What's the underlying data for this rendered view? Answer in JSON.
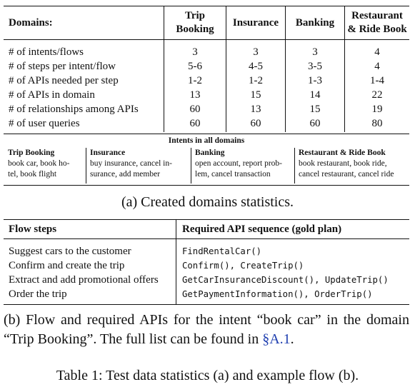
{
  "stats_table": {
    "header": {
      "domains_label": "Domains:",
      "columns": [
        {
          "line1": "Trip",
          "line2": "Booking"
        },
        {
          "line1": "Insurance",
          "line2": ""
        },
        {
          "line1": "Banking",
          "line2": ""
        },
        {
          "line1": "Restaurant",
          "line2": "& Ride Book"
        }
      ]
    },
    "rows": [
      {
        "label": "# of intents/flows",
        "values": [
          "3",
          "3",
          "3",
          "4"
        ]
      },
      {
        "label": "# of steps per intent/flow",
        "values": [
          "5-6",
          "4-5",
          "3-5",
          "4"
        ]
      },
      {
        "label": "# of APIs needed per step",
        "values": [
          "1-2",
          "1-2",
          "1-3",
          "1-4"
        ]
      },
      {
        "label": "# of APIs in domain",
        "values": [
          "13",
          "15",
          "14",
          "22"
        ]
      },
      {
        "label": "# of relationships among APIs",
        "values": [
          "60",
          "13",
          "15",
          "19"
        ]
      },
      {
        "label": "# of user queries",
        "values": [
          "60",
          "60",
          "60",
          "80"
        ]
      }
    ]
  },
  "intents": {
    "title": "Intents in all domains",
    "columns": [
      {
        "head": "Trip Booking",
        "line1": "book car, book ho-",
        "line2": "tel, book flight"
      },
      {
        "head": "Insurance",
        "line1": "buy insurance, cancel in-",
        "line2": "surance, add member"
      },
      {
        "head": "Banking",
        "line1": "open account, report prob-",
        "line2": "lem, cancel transaction"
      },
      {
        "head": "Restaurant & Ride Book",
        "line1": "book restaurant, book ride,",
        "line2": "cancel restaurant, cancel ride"
      }
    ]
  },
  "caption_a": "(a) Created domains statistics.",
  "flow_table": {
    "header": {
      "steps": "Flow steps",
      "apis": "Required API sequence (gold plan)"
    },
    "rows": [
      {
        "step": "Suggest cars to the customer",
        "apis": "FindRentalCar()"
      },
      {
        "step": "Confirm and create the trip",
        "apis": "Confirm(), CreateTrip()"
      },
      {
        "step": "Extract and add promotional offers",
        "apis": "GetCarInsuranceDiscount(), UpdateTrip()"
      },
      {
        "step": "Order the trip",
        "apis": "GetPaymentInformation(), OrderTrip()"
      }
    ]
  },
  "caption_b": {
    "line1": "(b) Flow and required APIs for the intent “book car” in the",
    "line2_pre": "domain “Trip Booking”. The full list can be found in ",
    "ref": "§A.1",
    "line2_post": "."
  },
  "table_caption": "Table 1: Test data statistics (a) and example flow (b).",
  "colors": {
    "text": "#111111",
    "link": "#1f3fb0"
  }
}
